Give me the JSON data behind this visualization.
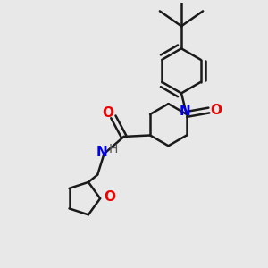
{
  "bg_color": "#e8e8e8",
  "bond_color": "#1a1a1a",
  "N_color": "#0000ee",
  "O_color": "#ee0000",
  "H_color": "#555555",
  "line_width": 1.8,
  "font_size": 10,
  "figsize": [
    3.0,
    3.0
  ],
  "dpi": 100,
  "xlim": [
    0,
    10
  ],
  "ylim": [
    0,
    10
  ]
}
